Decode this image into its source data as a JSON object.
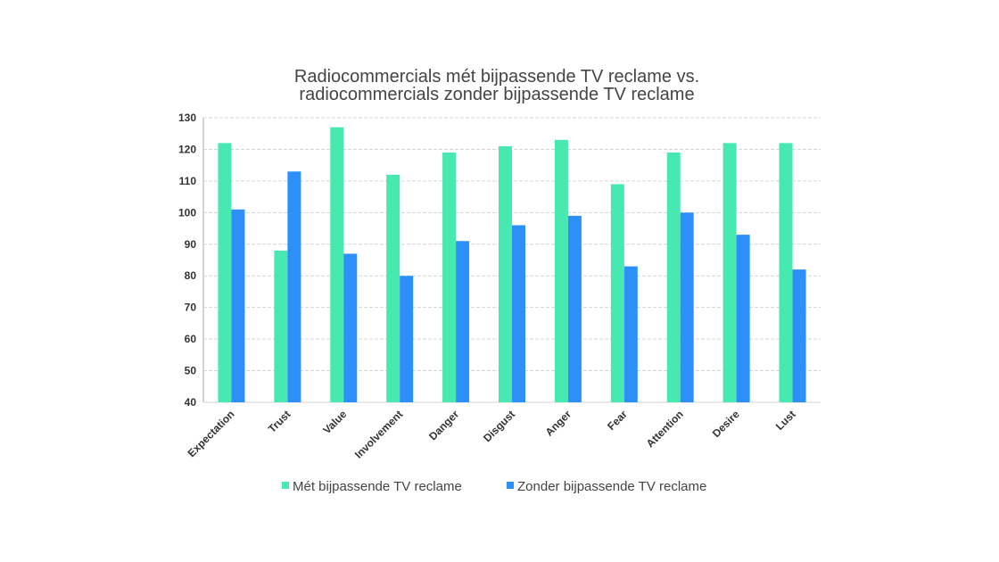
{
  "chart_data": {
    "type": "bar",
    "title": [
      "Radiocommercials mét bijpassende TV reclame vs.",
      "radiocommercials zonder bijpassende TV reclame"
    ],
    "xlabel": "",
    "ylabel": "",
    "ylim": [
      40,
      130
    ],
    "yticks": [
      40,
      50,
      60,
      70,
      80,
      90,
      100,
      110,
      120,
      130
    ],
    "grid": true,
    "legend_position": "bottom",
    "categories": [
      "Expectation",
      "Trust",
      "Value",
      "Involvement",
      "Danger",
      "Disgust",
      "Anger",
      "Fear",
      "Attention",
      "Desire",
      "Lust"
    ],
    "series": [
      {
        "name": "Mét bijpassende TV reclame",
        "color": "#47E9B0",
        "values": [
          122,
          88,
          127,
          112,
          119,
          121,
          123,
          109,
          119,
          122,
          122
        ]
      },
      {
        "name": "Zonder bijpassende TV reclame",
        "color": "#2D8FF8",
        "values": [
          101,
          113,
          87,
          80,
          91,
          96,
          99,
          83,
          100,
          93,
          82
        ]
      }
    ]
  }
}
